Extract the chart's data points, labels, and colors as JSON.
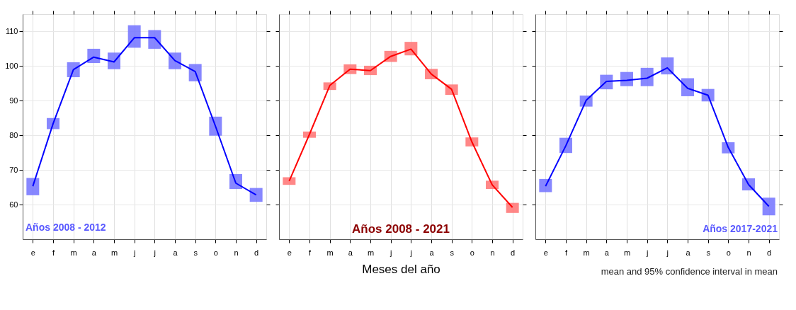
{
  "chart_data": [
    {
      "type": "line",
      "categories": [
        "e",
        "f",
        "m",
        "a",
        "m",
        "j",
        "j",
        "a",
        "s",
        "o",
        "n",
        "d"
      ],
      "ylim": [
        50,
        115
      ],
      "yticks": [
        60,
        70,
        80,
        90,
        100,
        110
      ],
      "grid": true,
      "marker": "none",
      "annotations": [
        "Años 2008 - 2012"
      ],
      "series": [
        {
          "color": "#0000ff",
          "values": [
            65.3,
            83.4,
            99.0,
            102.6,
            101.2,
            108.2,
            108.2,
            101.6,
            98.4,
            82.6,
            66.2,
            62.8
          ],
          "errors": [
            [
              62.7,
              67.7
            ],
            [
              81.8,
              85.0
            ],
            [
              96.8,
              101.1
            ],
            [
              100.9,
              105.0
            ],
            [
              99.1,
              103.9
            ],
            [
              105.3,
              111.8
            ],
            [
              105.0,
              110.4
            ],
            [
              99.1,
              103.9
            ],
            [
              95.6,
              100.6
            ],
            [
              79.9,
              85.4
            ],
            [
              64.5,
              68.8
            ],
            [
              60.8,
              64.8
            ]
          ]
        }
      ]
    },
    {
      "type": "line",
      "categories": [
        "e",
        "f",
        "m",
        "a",
        "m",
        "j",
        "j",
        "a",
        "s",
        "o",
        "n",
        "d"
      ],
      "ylim": [
        50,
        115
      ],
      "yticks": [
        60,
        70,
        80,
        90,
        100,
        110
      ],
      "grid": true,
      "marker": "none",
      "tick_labels": "x",
      "xlabel": "Meses del año",
      "annotations": [
        "Años 2008 - 2021"
      ],
      "series": [
        {
          "color": "#ff0000",
          "values": [
            66.8,
            80.3,
            94.4,
            99.1,
            98.7,
            102.8,
            104.9,
            97.7,
            93.3,
            78.1,
            65.7,
            59.2
          ],
          "errors": [
            [
              65.7,
              67.9
            ],
            [
              79.3,
              81.1
            ],
            [
              93.1,
              95.3
            ],
            [
              97.7,
              100.5
            ],
            [
              97.4,
              100.1
            ],
            [
              101.2,
              104.4
            ],
            [
              103.1,
              107.0
            ],
            [
              96.2,
              99.2
            ],
            [
              91.7,
              94.7
            ],
            [
              76.8,
              79.4
            ],
            [
              64.5,
              66.9
            ],
            [
              57.6,
              60.5
            ]
          ]
        }
      ]
    },
    {
      "type": "line",
      "categories": [
        "e",
        "f",
        "m",
        "a",
        "m",
        "j",
        "j",
        "a",
        "s",
        "o",
        "n",
        "d"
      ],
      "ylim": [
        50,
        115
      ],
      "yticks": [
        60,
        70,
        80,
        90,
        100,
        110
      ],
      "grid": true,
      "marker": "none",
      "tick_labels": "x",
      "annotations": [
        "Años 2017-2021",
        "mean and 95% confidence interval in mean"
      ],
      "series": [
        {
          "color": "#0000ff",
          "values": [
            65.3,
            77.0,
            90.1,
            95.6,
            95.9,
            96.5,
            99.5,
            93.6,
            91.6,
            76.5,
            65.8,
            59.5
          ],
          "errors": [
            [
              63.6,
              67.4
            ],
            [
              74.9,
              79.3
            ],
            [
              88.3,
              91.5
            ],
            [
              93.3,
              97.5
            ],
            [
              94.2,
              98.3
            ],
            [
              94.2,
              99.5
            ],
            [
              97.6,
              102.5
            ],
            [
              91.3,
              96.5
            ],
            [
              89.8,
              93.4
            ],
            [
              74.8,
              78.0
            ],
            [
              64.1,
              67.6
            ],
            [
              56.9,
              62.0
            ]
          ]
        }
      ]
    }
  ]
}
